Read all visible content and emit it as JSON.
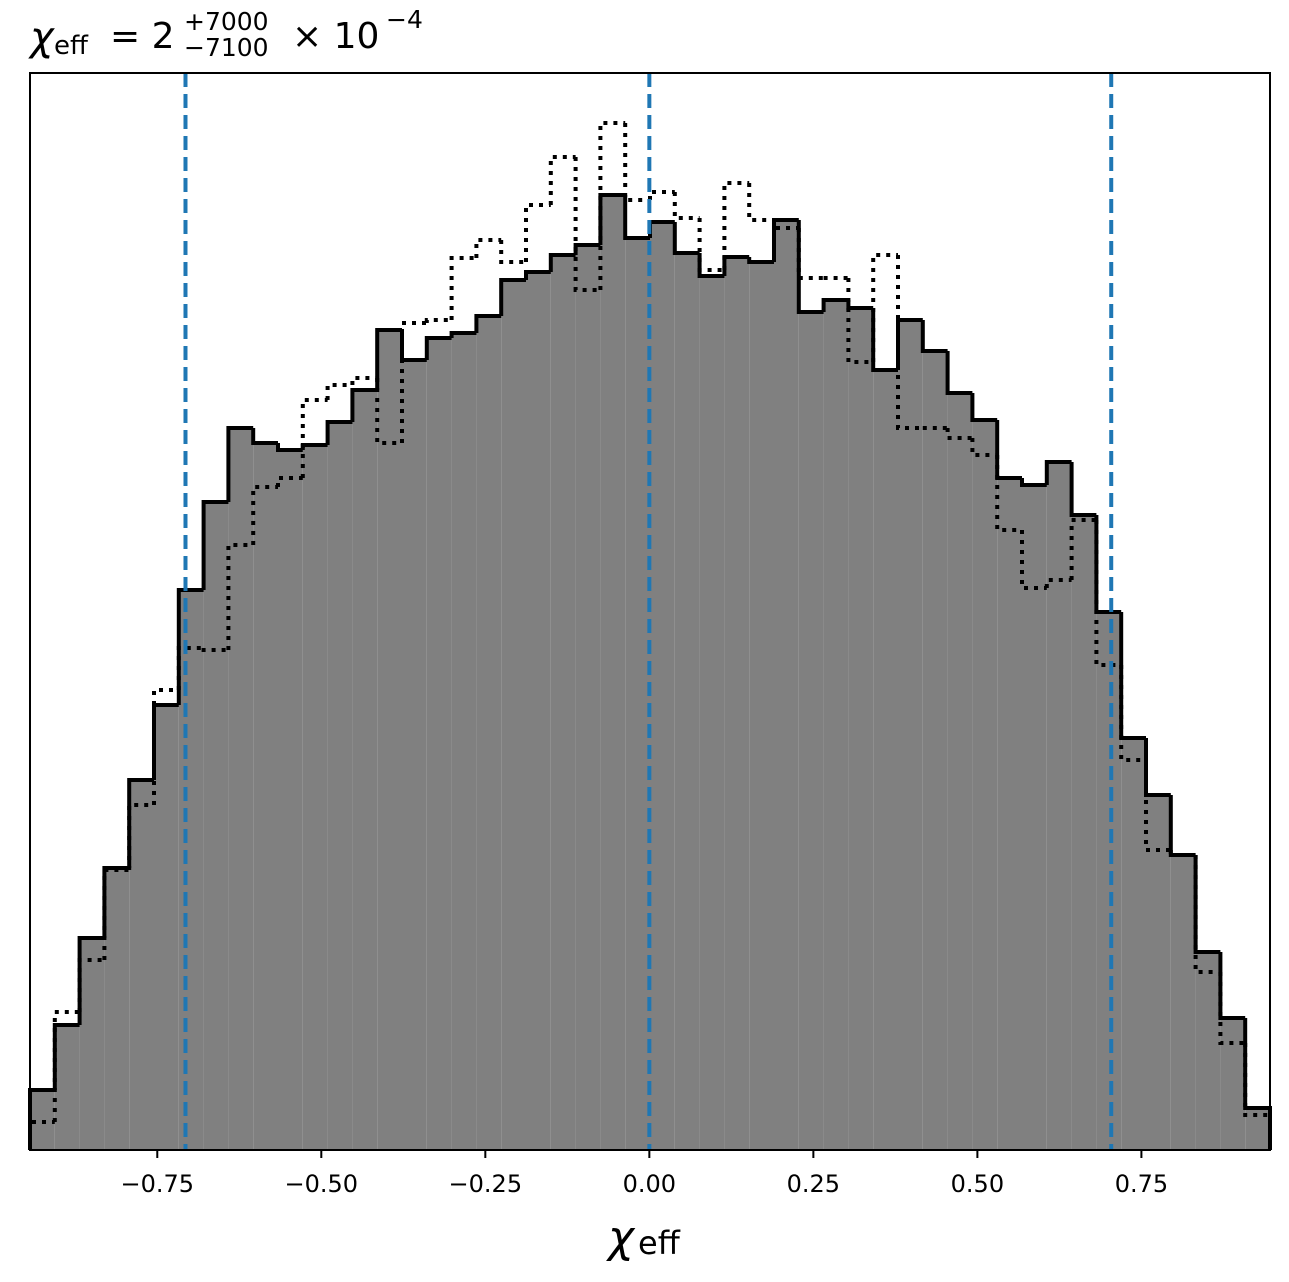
{
  "chart_data": {
    "type": "histogram",
    "title": {
      "symbol": "χ",
      "subscript": "eff",
      "base": "= 2",
      "upper": "+7000",
      "lower": "−7100",
      "times": "× 10",
      "exponent": "−4"
    },
    "xlabel": {
      "symbol": "χ",
      "subscript": "eff"
    },
    "bins": [
      -0.944,
      -0.9062,
      -0.8684,
      -0.8306,
      -0.7928,
      -0.755,
      -0.7172,
      -0.6794,
      -0.6416,
      -0.6038,
      -0.566,
      -0.5282,
      -0.4904,
      -0.4526,
      -0.4148,
      -0.377,
      -0.3392,
      -0.3014,
      -0.2636,
      -0.2258,
      -0.188,
      -0.1502,
      -0.1124,
      -0.0746,
      -0.0368,
      0.001,
      0.0388,
      0.0766,
      0.1144,
      0.1522,
      0.19,
      0.2278,
      0.2656,
      0.3034,
      0.3412,
      0.379,
      0.4168,
      0.4546,
      0.4924,
      0.5302,
      0.568,
      0.6058,
      0.6436,
      0.6814,
      0.7192,
      0.757,
      0.7948,
      0.8326,
      0.8704,
      0.9082,
      0.946
    ],
    "series": [
      {
        "style": "solid",
        "color": "#000000",
        "fill": "#808080",
        "values": [
          60,
          125,
          212,
          282,
          370,
          445,
          560,
          648,
          722,
          707,
          700,
          705,
          728,
          760,
          820,
          790,
          812,
          817,
          834,
          870,
          878,
          895,
          905,
          955,
          912,
          928,
          897,
          874,
          893,
          888,
          930,
          838,
          850,
          842,
          780,
          830,
          799,
          757,
          730,
          672,
          665,
          688,
          635,
          538,
          412,
          355,
          295,
          198,
          132,
          42
        ]
      },
      {
        "style": "dotted",
        "color": "#000000",
        "values": [
          28,
          138,
          190,
          280,
          345,
          460,
          502,
          500,
          605,
          663,
          672,
          750,
          765,
          772,
          707,
          827,
          830,
          892,
          910,
          888,
          945,
          993,
          860,
          1027,
          950,
          958,
          932,
          880,
          967,
          930,
          922,
          872,
          872,
          788,
          895,
          722,
          722,
          712,
          695,
          620,
          562,
          570,
          630,
          485,
          390,
          300,
          295,
          178,
          107,
          35
        ]
      }
    ],
    "vlines": {
      "color": "#1f77b4",
      "values": [
        -0.707,
        0,
        0.704
      ]
    },
    "xlim": [
      -0.944,
      0.946
    ],
    "ylim": [
      0,
      1077
    ],
    "xticks": [
      {
        "value": -0.75,
        "label": "−0.75"
      },
      {
        "value": -0.5,
        "label": "−0.50"
      },
      {
        "value": -0.25,
        "label": "−0.25"
      },
      {
        "value": 0,
        "label": "0.00"
      },
      0.25,
      {
        "value": 0.5,
        "label": "0.50"
      },
      0.75
    ]
  }
}
